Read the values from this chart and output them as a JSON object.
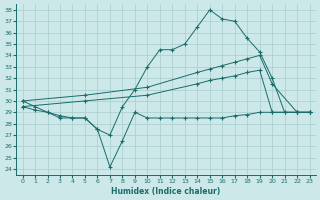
{
  "xlabel": "Humidex (Indice chaleur)",
  "ylabel": "",
  "xlim": [
    -0.5,
    23.5
  ],
  "ylim": [
    23.5,
    38.5
  ],
  "yticks": [
    24,
    25,
    26,
    27,
    28,
    29,
    30,
    31,
    32,
    33,
    34,
    35,
    36,
    37,
    38
  ],
  "xticks": [
    0,
    1,
    2,
    3,
    4,
    5,
    6,
    7,
    8,
    9,
    10,
    11,
    12,
    13,
    14,
    15,
    16,
    17,
    18,
    19,
    20,
    21,
    22,
    23
  ],
  "bg_color": "#cde8e8",
  "line_color": "#1a6b6b",
  "grid_color": "#a8cccc",
  "line1_x": [
    0,
    1,
    2,
    3,
    4,
    5,
    6,
    7,
    8,
    9,
    10,
    11,
    12,
    13,
    14,
    15,
    16,
    17,
    18,
    19,
    20,
    21,
    22,
    23
  ],
  "line1_y": [
    30.0,
    29.5,
    29.0,
    28.5,
    28.5,
    28.5,
    27.5,
    27.0,
    29.5,
    31.0,
    33.0,
    34.5,
    34.5,
    35.0,
    36.5,
    38.0,
    37.2,
    37.0,
    35.5,
    34.3,
    32.0,
    29.0,
    29.0,
    29.0
  ],
  "line2_x": [
    0,
    5,
    10,
    14,
    15,
    16,
    17,
    18,
    19,
    20,
    22,
    23
  ],
  "line2_y": [
    30.0,
    30.5,
    31.2,
    32.5,
    32.8,
    33.1,
    33.4,
    33.7,
    34.0,
    31.5,
    29.0,
    29.0
  ],
  "line3_x": [
    0,
    5,
    10,
    14,
    15,
    16,
    17,
    18,
    19,
    20,
    22,
    23
  ],
  "line3_y": [
    29.5,
    30.0,
    30.5,
    31.5,
    31.8,
    32.0,
    32.2,
    32.5,
    32.7,
    29.0,
    29.0,
    29.0
  ],
  "line4_x": [
    0,
    1,
    2,
    3,
    4,
    5,
    6,
    7,
    8,
    9,
    10,
    11,
    12,
    13,
    14,
    15,
    16,
    17,
    18,
    19,
    20,
    21,
    22,
    23
  ],
  "line4_y": [
    29.5,
    29.2,
    29.0,
    28.7,
    28.5,
    28.5,
    27.5,
    24.2,
    26.5,
    29.0,
    28.5,
    28.5,
    28.5,
    28.5,
    28.5,
    28.5,
    28.5,
    28.7,
    28.8,
    29.0,
    29.0,
    29.0,
    29.0,
    29.0
  ]
}
